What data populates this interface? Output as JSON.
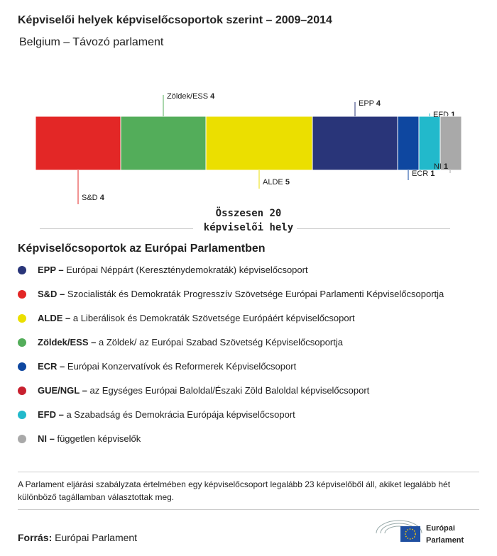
{
  "chart_data": {
    "type": "stacked-hbar",
    "title": "Képviselői helyek képviselőcsoportok szerint – 2009–2014",
    "subtitle": "Belgium – Távozó parlament",
    "total_label": "Összesen 20 képviselői hely",
    "series": [
      {
        "name": "S&D",
        "color": "#e32726",
        "values": [
          4
        ]
      },
      {
        "name": "Zöldek/ESS",
        "color": "#53ad5a",
        "values": [
          4
        ]
      },
      {
        "name": "ALDE",
        "color": "#ebdf00",
        "values": [
          5
        ]
      },
      {
        "name": "EPP",
        "color": "#293579",
        "values": [
          4
        ]
      },
      {
        "name": "ECR",
        "color": "#0e47a0",
        "values": [
          1
        ]
      },
      {
        "name": "EFD",
        "color": "#22b9cb",
        "values": [
          1
        ]
      },
      {
        "name": "NI",
        "color": "#a9a9a9",
        "values": [
          1
        ]
      }
    ]
  },
  "legend": {
    "title": "Képviselőcsoportok az Európai Parlamentben",
    "items": [
      {
        "label": "EPP –",
        "text": "Európai Néppárt (Kereszténydemokraták) képviselőcsoport",
        "color": "#293579"
      },
      {
        "label": "S&D –",
        "text": "Szocialisták és Demokraták Progresszív Szövetsége Európai Parlamenti Képviselőcsoportja",
        "color": "#e32726"
      },
      {
        "label": "ALDE –",
        "text": "a Liberálisok és Demokraták Szövetsége Európáért képviselőcsoport",
        "color": "#ebdf00"
      },
      {
        "label": "Zöldek/ESS –",
        "text": "a Zöldek/ az Európai Szabad Szövetség Képviselőcsoportja",
        "color": "#53ad5a"
      },
      {
        "label": "ECR –",
        "text": "Európai Konzervatívok és Reformerek Képviselőcsoport",
        "color": "#0e47a0"
      },
      {
        "label": "GUE/NGL –",
        "text": "az Egységes Európai Baloldal/Északi Zöld Baloldal képviselőcsoport",
        "color": "#c8202f"
      },
      {
        "label": "EFD –",
        "text": "a Szabadság és Demokrácia Európája képviselőcsoport",
        "color": "#22b9cb"
      },
      {
        "label": "NI –",
        "text": "független képviselők",
        "color": "#a9a9a9"
      }
    ]
  },
  "footnote": "A Parlament eljárási szabályzata értelmében egy képviselőcsoport legalább 23 képviselőből áll, akiket legalább hét különböző tagállamban választottak meg.",
  "source": {
    "label": "Forrás:",
    "text": "Európai Parlament"
  },
  "logo": [
    "Európai",
    "Parlament"
  ]
}
